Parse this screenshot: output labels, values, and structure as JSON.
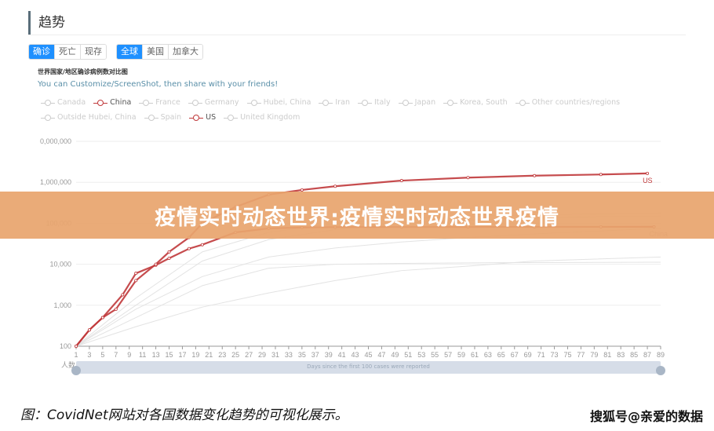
{
  "header": {
    "title": "趋势"
  },
  "metric_tabs": [
    {
      "label": "确诊",
      "active": true
    },
    {
      "label": "死亡",
      "active": false
    },
    {
      "label": "现存",
      "active": false
    }
  ],
  "region_tabs": [
    {
      "label": "全球",
      "active": true
    },
    {
      "label": "美国",
      "active": false
    },
    {
      "label": "加拿大",
      "active": false
    }
  ],
  "chart_subtitle": "世界国家/地区确诊病例数对比图",
  "share_text": "You can Customize/ScreenShot, then share with your friends!",
  "legend_row1": [
    {
      "label": "Canada",
      "on": false
    },
    {
      "label": "China",
      "on": true
    },
    {
      "label": "France",
      "on": false
    },
    {
      "label": "Germany",
      "on": false
    },
    {
      "label": "Hubei, China",
      "on": false
    },
    {
      "label": "Iran",
      "on": false
    },
    {
      "label": "Italy",
      "on": false
    },
    {
      "label": "Japan",
      "on": false
    },
    {
      "label": "Korea, South",
      "on": false
    },
    {
      "label": "Other countries/regions",
      "on": false
    }
  ],
  "legend_row2": [
    {
      "label": "Outside Hubei, China",
      "on": false
    },
    {
      "label": "Spain",
      "on": false
    },
    {
      "label": "US",
      "on": true
    },
    {
      "label": "United Kingdom",
      "on": false
    }
  ],
  "chart_data": {
    "type": "line",
    "yscale": "log",
    "ylim": [
      100,
      10000000
    ],
    "ytick_labels": [
      "100",
      "1,000",
      "10,000",
      "100,000",
      "1,000,000",
      "0,000,000"
    ],
    "xlim": [
      1,
      89
    ],
    "xlabel": "Days since the first 100 cases were reported",
    "ylabel": "人数",
    "grid": true,
    "accent_color": "#c0393b",
    "series": [
      {
        "name": "US",
        "color": "#c0393b",
        "x": [
          1,
          3,
          5,
          7,
          10,
          13,
          15,
          18,
          20,
          25,
          30,
          35,
          40,
          50,
          60,
          70,
          80,
          87
        ],
        "y": [
          100,
          250,
          500,
          800,
          4000,
          10000,
          20000,
          45000,
          100000,
          250000,
          500000,
          650000,
          800000,
          1100000,
          1300000,
          1450000,
          1550000,
          1650000
        ]
      },
      {
        "name": "China",
        "color": "#c0393b",
        "x": [
          1,
          3,
          5,
          8,
          10,
          13,
          15,
          18,
          20,
          25,
          30,
          35,
          40,
          50,
          60,
          70,
          80,
          88
        ],
        "y": [
          100,
          250,
          500,
          1800,
          6000,
          9500,
          14000,
          24000,
          30000,
          60000,
          75000,
          79000,
          80500,
          81000,
          81300,
          81500,
          81800,
          82000
        ]
      },
      {
        "color": "#e3e3e3",
        "x": [
          1,
          10,
          20,
          30,
          40,
          50,
          60,
          70,
          80,
          89
        ],
        "y": [
          100,
          1500,
          20000,
          60000,
          100000,
          130000,
          150000,
          160000,
          170000,
          175000
        ]
      },
      {
        "color": "#e3e3e3",
        "x": [
          1,
          10,
          20,
          30,
          40,
          50,
          60,
          70,
          80,
          89
        ],
        "y": [
          100,
          1000,
          12000,
          40000,
          70000,
          100000,
          120000,
          135000,
          145000,
          150000
        ]
      },
      {
        "color": "#e3e3e3",
        "x": [
          1,
          10,
          20,
          30,
          40,
          50,
          60,
          70,
          80,
          89
        ],
        "y": [
          100,
          800,
          5000,
          15000,
          25000,
          35000,
          45000,
          55000,
          65000,
          75000
        ]
      },
      {
        "color": "#e3e3e3",
        "x": [
          1,
          10,
          20,
          30,
          40,
          50,
          60,
          70,
          89
        ],
        "y": [
          100,
          500,
          3000,
          8000,
          10000,
          10500,
          10800,
          11000,
          11200
        ]
      },
      {
        "color": "#e3e3e3",
        "x": [
          1,
          10,
          20,
          30,
          40,
          50,
          60,
          70,
          89
        ],
        "y": [
          100,
          300,
          900,
          2000,
          4000,
          7000,
          9000,
          12000,
          15000
        ]
      }
    ],
    "end_labels": [
      "US",
      "China"
    ]
  },
  "slider": {
    "label": "Days since the first 100 cases were reported"
  },
  "banner": {
    "text": "疫情实时动态世界:疫情实时动态世界疫情"
  },
  "caption": "图：CovidNet网站对各国数据变化趋势的可视化展示。",
  "watermark": "搜狐号@亲爱的数据"
}
